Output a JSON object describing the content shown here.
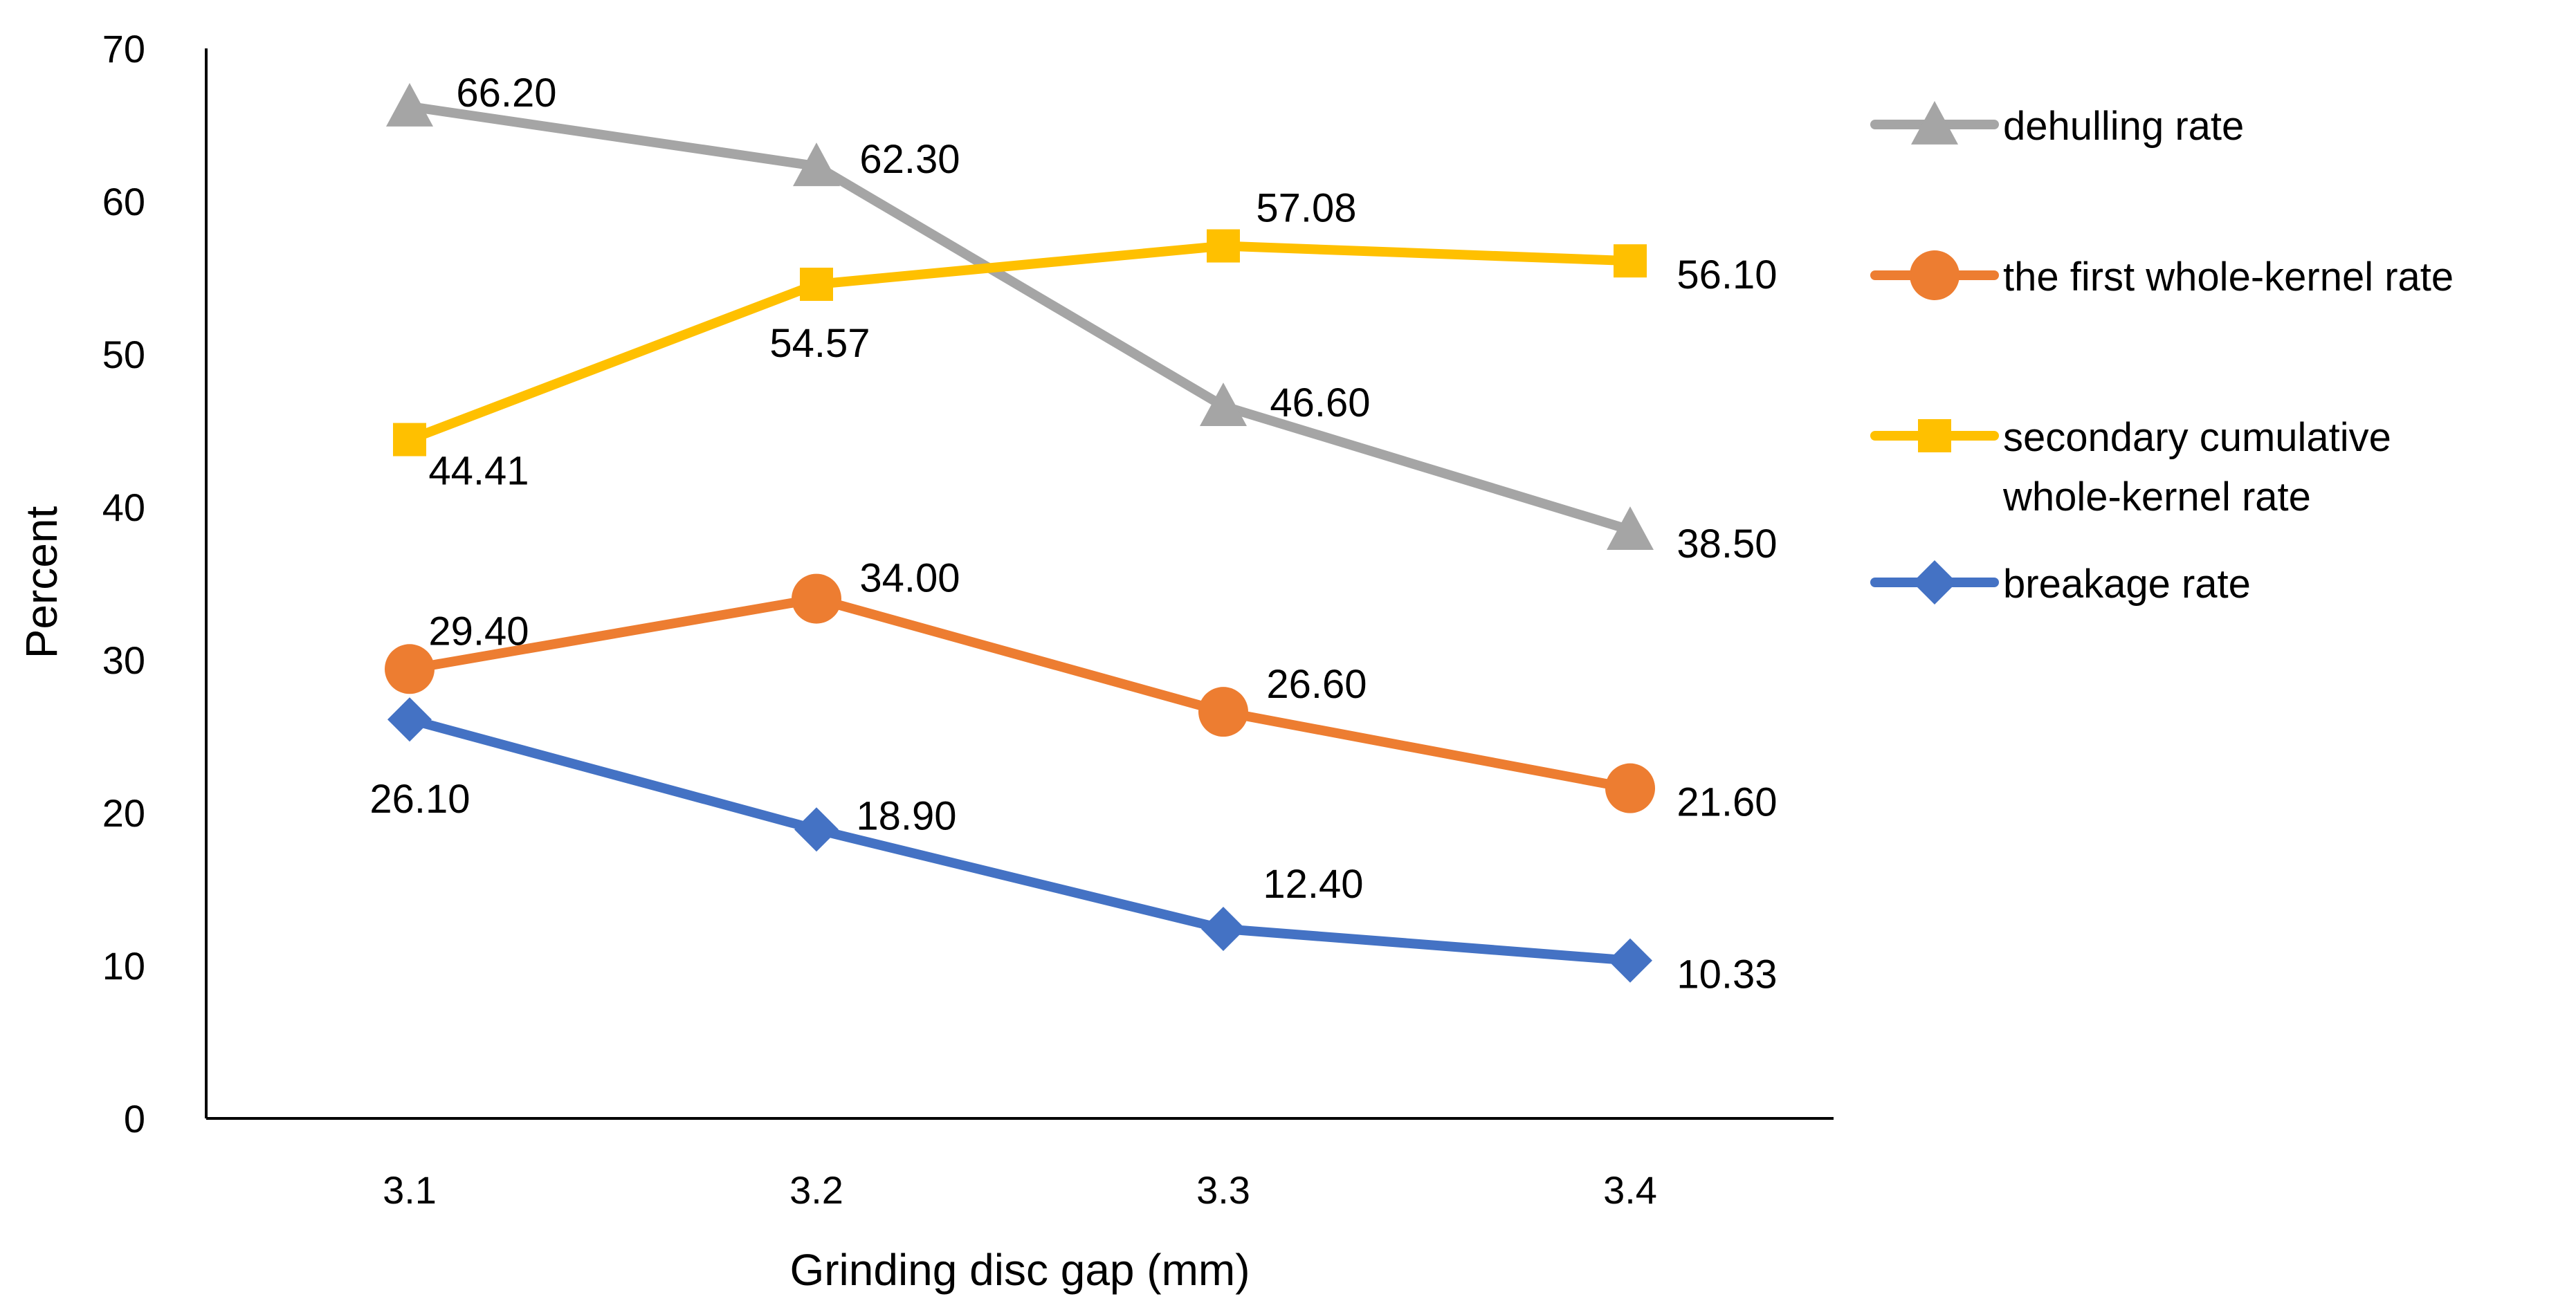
{
  "chart_data": {
    "type": "line",
    "title": "",
    "xlabel": "Grinding disc gap (mm)",
    "ylabel": "Percent",
    "categories": [
      "3.1",
      "3.2",
      "3.3",
      "3.4"
    ],
    "ylim": [
      0,
      70
    ],
    "yticks": [
      "0",
      "10",
      "20",
      "30",
      "40",
      "50",
      "60",
      "70"
    ],
    "grid": false,
    "legend_position": "right",
    "series": [
      {
        "name": "dehulling rate",
        "legend_lines": [
          "dehulling rate"
        ],
        "color": "#A5A5A5",
        "marker": "triangle",
        "values": [
          66.2,
          62.3,
          46.6,
          38.5
        ],
        "labels": [
          "66.20",
          "62.30",
          "46.60",
          "38.50"
        ]
      },
      {
        "name": "the first whole-kernel rate",
        "legend_lines": [
          "the first whole-kernel rate"
        ],
        "color": "#ED7D31",
        "marker": "circle",
        "values": [
          29.4,
          34.0,
          26.6,
          21.6
        ],
        "labels": [
          "29.40",
          "34.00",
          "26.60",
          "21.60"
        ]
      },
      {
        "name": "secondary cumulative whole-kernel rate",
        "legend_lines": [
          "secondary cumulative",
          "whole-kernel rate"
        ],
        "color": "#FFC000",
        "marker": "square",
        "values": [
          44.41,
          54.57,
          57.08,
          56.1
        ],
        "labels": [
          "44.41",
          "54.57",
          "57.08",
          "56.10"
        ]
      },
      {
        "name": "breakage rate",
        "legend_lines": [
          "breakage rate"
        ],
        "color": "#4472C4",
        "marker": "diamond",
        "values": [
          26.1,
          18.9,
          12.4,
          10.33
        ],
        "labels": [
          "26.10",
          "18.90",
          "12.40",
          "10.33"
        ]
      }
    ]
  }
}
